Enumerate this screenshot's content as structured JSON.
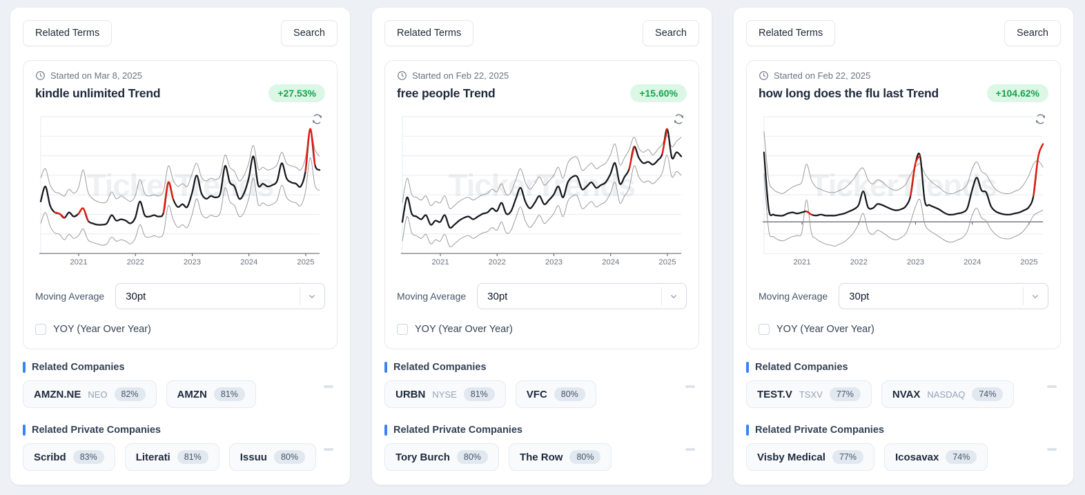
{
  "cards": [
    {
      "related_terms_label": "Related Terms",
      "search_label": "Search",
      "started": "Started on Mar 8, 2025",
      "title": "kindle unlimited Trend",
      "change": "+27.53%",
      "moving_average_label": "Moving Average",
      "moving_average_value": "30pt",
      "yoy_label": "YOY (Year Over Year)",
      "related_companies_label": "Related Companies",
      "related_private_label": "Related Private Companies",
      "companies": [
        {
          "name": "AMZN.NE",
          "exchange": "NEO",
          "score": "82%"
        },
        {
          "name": "AMZN",
          "score": "81%"
        }
      ],
      "private_companies": [
        {
          "name": "Scribd",
          "score": "83%"
        },
        {
          "name": "Literati",
          "score": "81%"
        },
        {
          "name": "Issuu",
          "score": "80%"
        }
      ]
    },
    {
      "related_terms_label": "Related Terms",
      "search_label": "Search",
      "started": "Started on Feb 22, 2025",
      "title": "free people Trend",
      "change": "+15.60%",
      "moving_average_label": "Moving Average",
      "moving_average_value": "30pt",
      "yoy_label": "YOY (Year Over Year)",
      "related_companies_label": "Related Companies",
      "related_private_label": "Related Private Companies",
      "companies": [
        {
          "name": "URBN",
          "exchange": "NYSE",
          "score": "81%"
        },
        {
          "name": "VFC",
          "score": "80%"
        }
      ],
      "private_companies": [
        {
          "name": "Tory Burch",
          "score": "80%"
        },
        {
          "name": "The Row",
          "score": "80%"
        }
      ]
    },
    {
      "related_terms_label": "Related Terms",
      "search_label": "Search",
      "started": "Started on Feb 22, 2025",
      "title": "how long does the flu last Trend",
      "change": "+104.62%",
      "moving_average_label": "Moving Average",
      "moving_average_value": "30pt",
      "yoy_label": "YOY (Year Over Year)",
      "related_companies_label": "Related Companies",
      "related_private_label": "Related Private Companies",
      "companies": [
        {
          "name": "TEST.V",
          "exchange": "TSXV",
          "score": "77%"
        },
        {
          "name": "NVAX",
          "exchange": "NASDAQ",
          "score": "74%"
        }
      ],
      "private_companies": [
        {
          "name": "Visby Medical",
          "score": "77%"
        },
        {
          "name": "Icosavax",
          "score": "74%"
        }
      ]
    }
  ],
  "colors": {
    "page_bg": "#edf1f5",
    "accent_blue": "#3b82f6",
    "badge_green_text": "#17a34a",
    "badge_green_bg": "#dcf7e6",
    "chart_main": "#17181c",
    "chart_band": "#909090",
    "chart_red": "#e81c0d",
    "gridline": "#e6ebf1"
  },
  "chart_data": [
    {
      "type": "line",
      "title": "kindle unlimited Trend",
      "watermark": "TickerTrends",
      "x_start": 2020.33,
      "x_step": 0.0833,
      "x_ticks": [
        2021,
        2022,
        2023,
        2024,
        2025
      ],
      "ylim": [
        0,
        100
      ],
      "zero_axis": false,
      "series": [
        {
          "name": "upper_band",
          "values": [
            55,
            62,
            50,
            45,
            44,
            42,
            47,
            44,
            48,
            61,
            45,
            40,
            38,
            37,
            38,
            45,
            40,
            42,
            40,
            38,
            42,
            54,
            44,
            42,
            43,
            42,
            46,
            64,
            54,
            49,
            51,
            49,
            58,
            66,
            56,
            53,
            55,
            54,
            57,
            72,
            63,
            60,
            53,
            57,
            66,
            79,
            62,
            63,
            61,
            62,
            65,
            74,
            66,
            64,
            63,
            61,
            70,
            90,
            76,
            71
          ]
        },
        {
          "name": "main",
          "values": [
            38,
            49,
            35,
            30,
            29,
            26,
            30,
            27,
            29,
            33,
            24,
            22,
            21,
            21,
            22,
            28,
            24,
            25,
            24,
            22,
            26,
            38,
            28,
            27,
            28,
            27,
            30,
            52,
            40,
            34,
            36,
            34,
            44,
            57,
            44,
            40,
            42,
            41,
            44,
            64,
            52,
            49,
            40,
            44,
            55,
            71,
            50,
            51,
            49,
            50,
            53,
            66,
            55,
            52,
            51,
            49,
            60,
            91,
            65,
            61
          ]
        },
        {
          "name": "lower_band",
          "values": [
            22,
            30,
            20,
            15,
            14,
            10,
            14,
            11,
            13,
            18,
            10,
            8,
            7,
            6,
            7,
            12,
            9,
            10,
            9,
            7,
            11,
            21,
            13,
            12,
            13,
            12,
            15,
            35,
            25,
            19,
            21,
            19,
            28,
            40,
            29,
            26,
            28,
            27,
            30,
            48,
            38,
            35,
            27,
            30,
            40,
            55,
            36,
            37,
            35,
            36,
            39,
            50,
            41,
            38,
            37,
            35,
            45,
            70,
            50,
            46
          ]
        }
      ],
      "red_segments": [
        [
          3,
          5
        ],
        [
          8,
          10
        ],
        [
          26,
          28
        ],
        [
          56,
          58
        ]
      ]
    },
    {
      "type": "line",
      "title": "free people Trend",
      "watermark": "TickerTrends",
      "x_start": 2020.33,
      "x_step": 0.0833,
      "x_ticks": [
        2021,
        2022,
        2023,
        2024,
        2025
      ],
      "ylim": [
        0,
        100
      ],
      "zero_axis": false,
      "series": [
        {
          "name": "upper_band",
          "values": [
            37,
            55,
            43,
            41,
            39,
            42,
            35,
            38,
            37,
            42,
            33,
            35,
            38,
            40,
            41,
            39,
            41,
            43,
            44,
            47,
            45,
            51,
            43,
            45,
            54,
            62,
            52,
            47,
            51,
            56,
            50,
            53,
            57,
            63,
            55,
            66,
            70,
            70,
            61,
            63,
            66,
            62,
            64,
            66,
            72,
            80,
            65,
            70,
            76,
            85,
            77,
            74,
            76,
            72,
            76,
            80,
            86,
            78,
            82,
            85
          ]
        },
        {
          "name": "main",
          "values": [
            23,
            41,
            29,
            27,
            25,
            28,
            21,
            24,
            23,
            28,
            19,
            21,
            24,
            26,
            27,
            25,
            27,
            29,
            30,
            33,
            31,
            37,
            29,
            31,
            40,
            48,
            38,
            33,
            37,
            42,
            36,
            39,
            43,
            49,
            41,
            52,
            56,
            56,
            47,
            49,
            52,
            48,
            50,
            52,
            58,
            66,
            51,
            56,
            62,
            78,
            70,
            66,
            67,
            65,
            68,
            73,
            91,
            70,
            74,
            71
          ]
        },
        {
          "name": "lower_band",
          "values": [
            9,
            27,
            15,
            13,
            11,
            14,
            7,
            10,
            9,
            14,
            5,
            7,
            10,
            12,
            13,
            11,
            13,
            15,
            16,
            19,
            17,
            23,
            15,
            17,
            26,
            34,
            24,
            19,
            23,
            28,
            22,
            25,
            29,
            35,
            27,
            38,
            42,
            42,
            33,
            35,
            38,
            34,
            36,
            38,
            44,
            52,
            37,
            42,
            48,
            64,
            56,
            52,
            53,
            51,
            54,
            59,
            72,
            56,
            60,
            57
          ]
        }
      ],
      "red_segments": [
        [
          48,
          49
        ],
        [
          55,
          56
        ]
      ]
    },
    {
      "type": "line",
      "title": "how long does the flu last Trend",
      "watermark": "TickerTrends",
      "x_start": 2020.33,
      "x_step": 0.0833,
      "x_ticks": [
        2021,
        2022,
        2023,
        2024,
        2025
      ],
      "ylim": [
        -30,
        100
      ],
      "zero_axis": true,
      "series": [
        {
          "name": "upper_band",
          "values": [
            86,
            40,
            31,
            28,
            27,
            30,
            33,
            35,
            38,
            55,
            40,
            33,
            31,
            29,
            28,
            28,
            30,
            32,
            36,
            41,
            48,
            51,
            40,
            36,
            40,
            38,
            34,
            31,
            30,
            32,
            36,
            45,
            52,
            55,
            46,
            40,
            36,
            33,
            29,
            27,
            27,
            29,
            31,
            36,
            50,
            57,
            48,
            45,
            37,
            31,
            28,
            27,
            27,
            29,
            31,
            36,
            44,
            55,
            58,
            52
          ]
        },
        {
          "name": "main",
          "values": [
            66,
            12,
            7,
            6,
            6,
            8,
            9,
            8,
            9,
            10,
            7,
            6,
            7,
            6,
            6,
            6,
            7,
            8,
            10,
            12,
            16,
            29,
            14,
            13,
            17,
            16,
            14,
            12,
            11,
            12,
            15,
            25,
            55,
            63,
            20,
            16,
            14,
            12,
            9,
            7,
            7,
            8,
            9,
            13,
            30,
            42,
            30,
            28,
            15,
            10,
            8,
            7,
            7,
            8,
            9,
            11,
            14,
            25,
            62,
            74
          ]
        },
        {
          "name": "lower_band",
          "values": [
            46,
            -8,
            -14,
            -17,
            -18,
            -16,
            -14,
            -13,
            -10,
            21,
            -10,
            -16,
            -19,
            -21,
            -22,
            -23,
            -21,
            -19,
            -15,
            -10,
            -2,
            8,
            -8,
            -12,
            -8,
            -10,
            -13,
            -16,
            -17,
            -15,
            -11,
            0,
            14,
            21,
            -2,
            -8,
            -11,
            -14,
            -17,
            -19,
            -19,
            -17,
            -15,
            -9,
            6,
            13,
            4,
            1,
            -7,
            -12,
            -15,
            -16,
            -16,
            -14,
            -12,
            -8,
            -2,
            6,
            9,
            11
          ]
        }
      ],
      "red_segments": [
        [
          9,
          10
        ],
        [
          31,
          33
        ],
        [
          57,
          59
        ]
      ]
    }
  ]
}
